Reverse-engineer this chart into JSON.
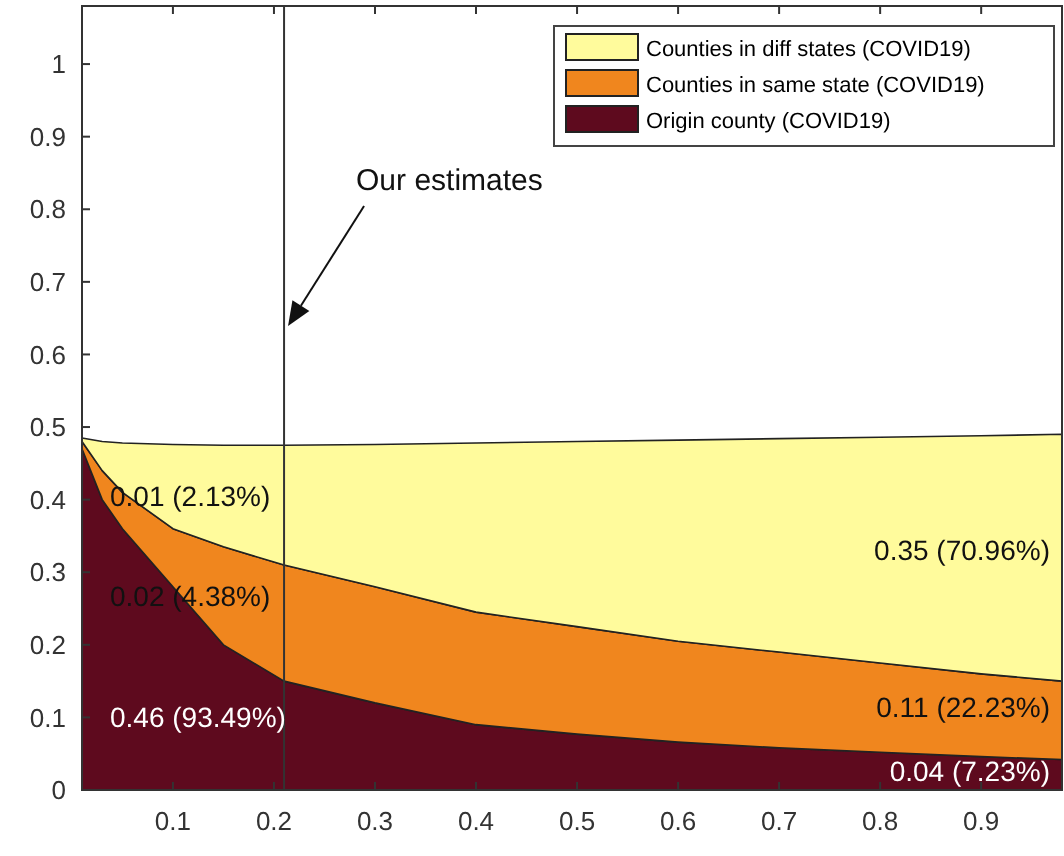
{
  "chart_data": {
    "type": "area",
    "stacked": true,
    "x": [
      0.01,
      0.03,
      0.05,
      0.1,
      0.15,
      0.21,
      0.3,
      0.4,
      0.5,
      0.6,
      0.7,
      0.8,
      0.9,
      0.98
    ],
    "series": [
      {
        "name": "Origin county (COVID19)",
        "color": "#5e0a1e",
        "values": [
          0.47,
          0.4,
          0.36,
          0.28,
          0.2,
          0.15,
          0.12,
          0.09,
          0.077,
          0.066,
          0.058,
          0.052,
          0.046,
          0.042
        ]
      },
      {
        "name": "Counties in same state  (COVID19)",
        "color": "#f0861e",
        "values": [
          0.01,
          0.04,
          0.05,
          0.08,
          0.135,
          0.16,
          0.16,
          0.155,
          0.148,
          0.139,
          0.132,
          0.123,
          0.114,
          0.108
        ]
      },
      {
        "name": "Counties in diff states (COVID19)",
        "color": "#fffb9c",
        "values": [
          0.005,
          0.04,
          0.068,
          0.116,
          0.14,
          0.165,
          0.196,
          0.233,
          0.255,
          0.277,
          0.294,
          0.311,
          0.328,
          0.34
        ]
      }
    ],
    "xlim": [
      0.01,
      0.98
    ],
    "xticks": [
      0.1,
      0.2,
      0.3,
      0.4,
      0.5,
      0.6,
      0.7,
      0.8,
      0.9
    ],
    "ylim": [
      0,
      1.08
    ],
    "yticks": [
      0,
      0.1,
      0.2,
      0.3,
      0.4,
      0.5,
      0.6,
      0.7,
      0.8,
      0.9,
      1
    ],
    "legend": "top right",
    "grid": false,
    "ref_lines": [
      {
        "axis": "x",
        "value": 0.21
      }
    ],
    "annotations": [
      "Our estimates",
      "0.01 (2.13%)",
      "0.02 (4.38%)",
      "0.46 (93.49%)",
      "0.35 (70.96%)",
      "0.11 (22.23%)",
      "0.04 (7.23%)"
    ]
  }
}
